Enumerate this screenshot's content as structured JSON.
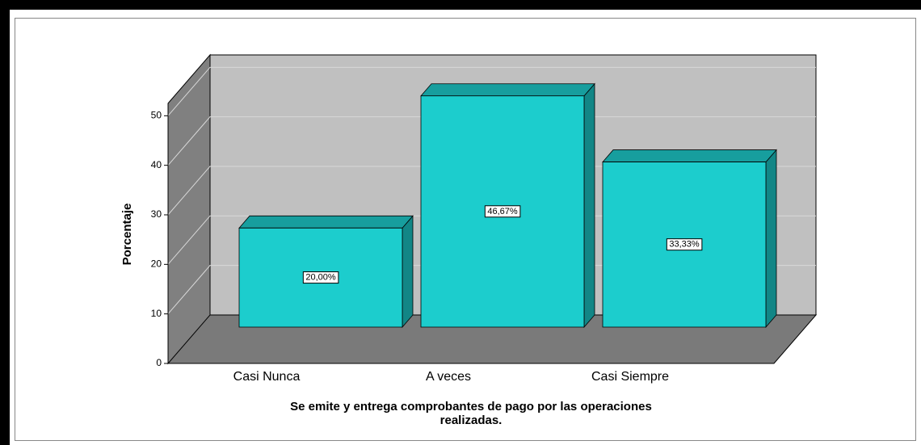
{
  "chart_data": {
    "type": "bar3d",
    "title": [
      "Se emite y entrega comprobantes de pago por las operaciones",
      "realizadas."
    ],
    "y_label": "Porcentaje",
    "categories": [
      "Casi Nunca",
      "A veces",
      "Casi Siempre"
    ],
    "values": [
      20,
      46.67,
      33.33
    ],
    "value_labels": [
      "20,00%",
      "46,67%",
      "33,33%"
    ],
    "color": "#1ccdcd",
    "ylim": [
      0,
      52.5
    ],
    "yticks": [
      0,
      10,
      20,
      30,
      40,
      50
    ],
    "grid": true
  }
}
